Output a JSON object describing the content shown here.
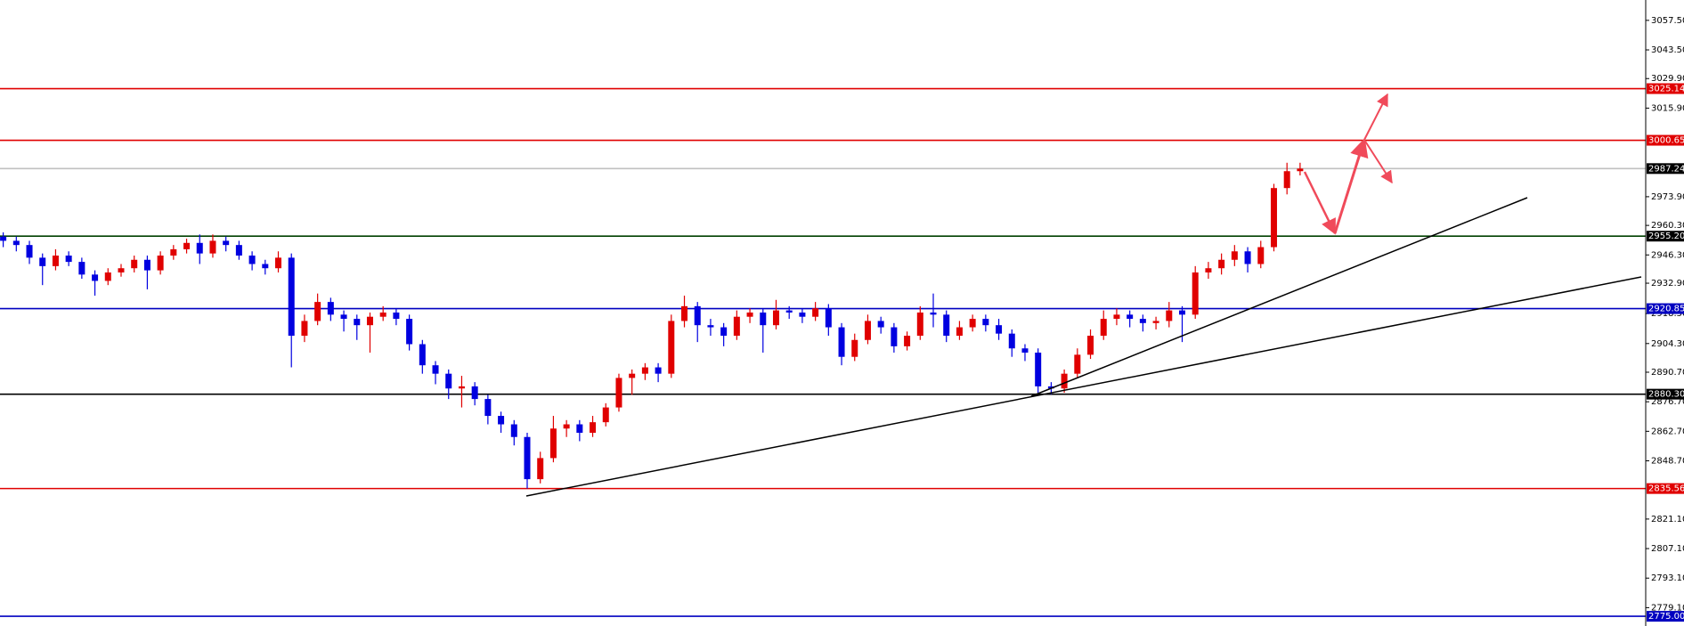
{
  "chart_data": {
    "type": "candlestick",
    "up_color": "#e00000",
    "down_color": "#0000e0",
    "ylim": [
      2770.4,
      3067.15
    ],
    "yticks": [
      {
        "value": 3057.5,
        "label": "3057.50"
      },
      {
        "value": 3043.5,
        "label": "3043.50"
      },
      {
        "value": 3029.9,
        "label": "3029.90"
      },
      {
        "value": 3015.9,
        "label": "3015.90"
      },
      {
        "value": 2973.9,
        "label": "2973.90"
      },
      {
        "value": 2960.3,
        "label": "2960.30"
      },
      {
        "value": 2946.3,
        "label": "2946.30"
      },
      {
        "value": 2932.9,
        "label": "2932.90"
      },
      {
        "value": 2918.5,
        "label": "2918.50"
      },
      {
        "value": 2904.3,
        "label": "2904.30"
      },
      {
        "value": 2890.7,
        "label": "2890.70"
      },
      {
        "value": 2876.7,
        "label": "2876.70"
      },
      {
        "value": 2862.7,
        "label": "2862.70"
      },
      {
        "value": 2848.7,
        "label": "2848.70"
      },
      {
        "value": 2821.1,
        "label": "2821.10"
      },
      {
        "value": 2807.1,
        "label": "2807.10"
      },
      {
        "value": 2793.1,
        "label": "2793.10"
      },
      {
        "value": 2779.1,
        "label": "2779.10"
      }
    ],
    "levels": [
      {
        "value": 3025.14,
        "color": "#e00000",
        "label_bg": "#e00000"
      },
      {
        "value": 3000.65,
        "color": "#e00000",
        "label_bg": "#e00000"
      },
      {
        "value": 2987.24,
        "color": "#c0c0c0",
        "label_bg": "#000000"
      },
      {
        "value": 2955.2,
        "label": "2955.20",
        "color": "#004000",
        "label_bg": "#000000"
      },
      {
        "value": 2920.85,
        "color": "#0000c0",
        "label_bg": "#0000c0"
      },
      {
        "value": 2880.3,
        "label": "2880.30",
        "color": "#000000",
        "label_bg": "#000000"
      },
      {
        "value": 2835.56,
        "color": "#e00000",
        "label_bg": "#e00000"
      },
      {
        "value": 2775,
        "label": "2775.00",
        "color": "#0000c0",
        "label_bg": "#0000c0"
      }
    ],
    "open": [
      2955,
      2953,
      2951,
      2945,
      2941,
      2946,
      2943,
      2937,
      2934,
      2938,
      2940,
      2944,
      2939,
      2946,
      2949,
      2952,
      2947,
      2953,
      2951,
      2946,
      2942,
      2940,
      2945,
      2908,
      2915,
      2924,
      2918,
      2916,
      2913,
      2917,
      2919,
      2916,
      2904,
      2894,
      2890,
      2883,
      2884,
      2878,
      2870,
      2866,
      2860,
      2840,
      2850,
      2864,
      2866,
      2862,
      2867,
      2874,
      2888,
      2890,
      2893,
      2890,
      2915,
      2922,
      2913,
      2912,
      2908,
      2917,
      2919,
      2913,
      2920,
      2919,
      2917,
      2921,
      2912,
      2898,
      2906,
      2915,
      2912,
      2903,
      2908,
      2919,
      2918,
      2908,
      2912,
      2916,
      2913,
      2909,
      2902,
      2900,
      2884,
      2883,
      2890,
      2899,
      2908,
      2916,
      2918,
      2916,
      2914,
      2915,
      2920,
      2918,
      2938,
      2940,
      2944,
      2948,
      2942,
      2950,
      2978,
      2986
    ],
    "high": [
      2957,
      2955,
      2953,
      2947,
      2949,
      2948,
      2945,
      2939,
      2940,
      2942,
      2946,
      2946,
      2948,
      2951,
      2954,
      2956,
      2956,
      2955,
      2953,
      2948,
      2944,
      2948,
      2947,
      2918,
      2928,
      2926,
      2920,
      2918,
      2919,
      2922,
      2921,
      2918,
      2906,
      2896,
      2892,
      2889,
      2886,
      2880,
      2872,
      2868,
      2862,
      2853,
      2870,
      2868,
      2868,
      2870,
      2876,
      2890,
      2892,
      2895,
      2895,
      2918,
      2927,
      2924,
      2916,
      2914,
      2920,
      2921,
      2921,
      2925,
      2922,
      2921,
      2924,
      2923,
      2914,
      2909,
      2918,
      2917,
      2914,
      2910,
      2922,
      2928,
      2920,
      2915,
      2918,
      2918,
      2916,
      2911,
      2904,
      2902,
      2886,
      2892,
      2902,
      2911,
      2920,
      2921,
      2920,
      2918,
      2917,
      2924,
      2922,
      2941,
      2943,
      2947,
      2951,
      2950,
      2953,
      2980,
      2990,
      2990
    ],
    "low": [
      2950,
      2948,
      2942,
      2932,
      2939,
      2941,
      2935,
      2927,
      2932,
      2936,
      2938,
      2930,
      2937,
      2944,
      2947,
      2942,
      2945,
      2948,
      2944,
      2939,
      2937,
      2938,
      2893,
      2905,
      2913,
      2915,
      2910,
      2906,
      2900,
      2915,
      2913,
      2901,
      2890,
      2885,
      2878,
      2874,
      2875,
      2866,
      2862,
      2856,
      2835.56,
      2838,
      2848,
      2860,
      2858,
      2860,
      2865,
      2872,
      2880,
      2887,
      2886,
      2888,
      2912,
      2905,
      2908,
      2903,
      2906,
      2914,
      2900,
      2911,
      2916,
      2914,
      2915,
      2908,
      2894,
      2896,
      2904,
      2909,
      2900,
      2901,
      2906,
      2912,
      2905,
      2906,
      2910,
      2910,
      2906,
      2898,
      2896,
      2881,
      2880.3,
      2881,
      2888,
      2897,
      2906,
      2913,
      2912,
      2910,
      2911,
      2912,
      2905,
      2916,
      2935,
      2937,
      2941,
      2938,
      2940,
      2948,
      2975,
      2984
    ],
    "close": [
      2953,
      2951,
      2945,
      2941,
      2946,
      2943,
      2937,
      2934,
      2938,
      2940,
      2944,
      2939,
      2946,
      2949,
      2952,
      2947,
      2953,
      2951,
      2946,
      2942,
      2940,
      2945,
      2908,
      2915,
      2924,
      2918,
      2916,
      2913,
      2917,
      2919,
      2916,
      2904,
      2894,
      2890,
      2883,
      2884,
      2878,
      2870,
      2866,
      2860,
      2840,
      2850,
      2864,
      2866,
      2862,
      2867,
      2874,
      2888,
      2890,
      2893,
      2890,
      2915,
      2922,
      2913,
      2912,
      2908,
      2917,
      2919,
      2913,
      2920,
      2919,
      2917,
      2921,
      2912,
      2898,
      2906,
      2915,
      2912,
      2903,
      2908,
      2919,
      2918,
      2908,
      2912,
      2916,
      2913,
      2909,
      2902,
      2900,
      2884,
      2883,
      2890,
      2899,
      2908,
      2916,
      2918,
      2916,
      2914,
      2915,
      2920,
      2918,
      2938,
      2940,
      2944,
      2948,
      2942,
      2950,
      2978,
      2986,
      2987.24
    ]
  }
}
